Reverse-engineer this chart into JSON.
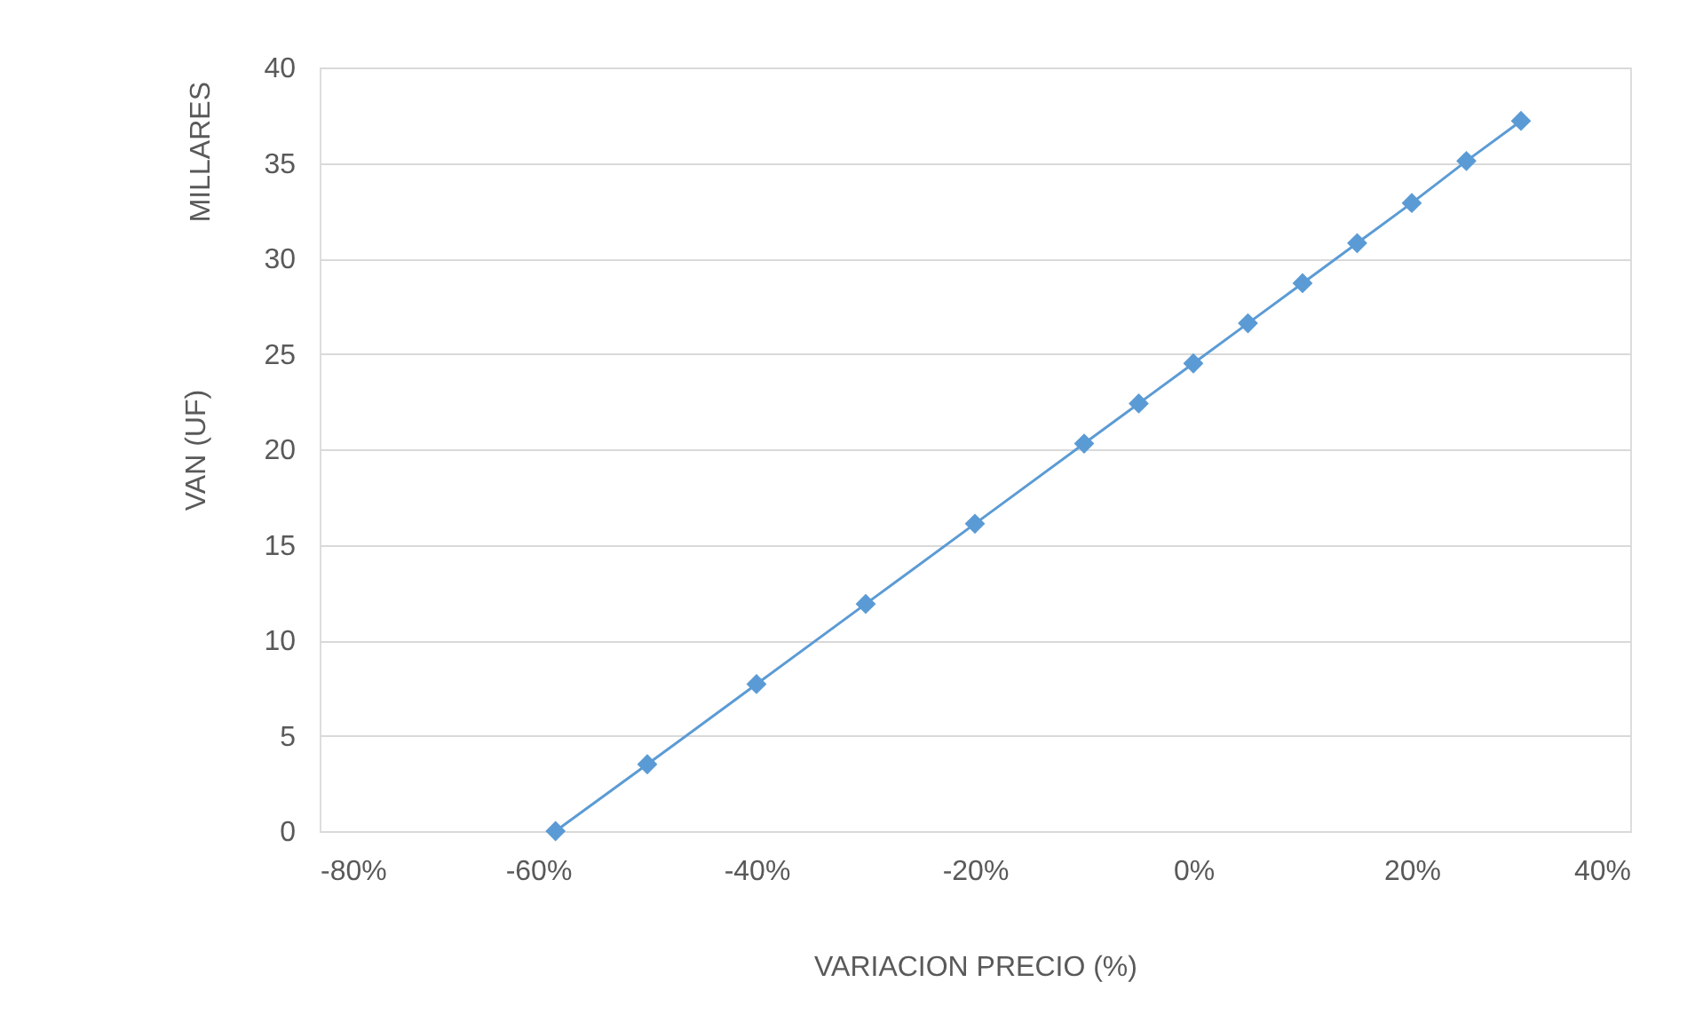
{
  "chart_data": {
    "type": "line",
    "xlabel": "VARIACION PRECIO (%)",
    "ylabel": "VAN (UF)",
    "annotations": [
      "MILLARES"
    ],
    "x": [
      -58.4,
      -50,
      -40,
      -30,
      -20,
      -10,
      -5,
      0,
      5,
      10,
      15,
      20,
      25,
      30
    ],
    "series": [
      {
        "color": "#5b9bd5",
        "values": [
          0,
          3.5,
          7.7,
          11.9,
          16.1,
          20.3,
          22.4,
          24.5,
          26.6,
          28.7,
          30.8,
          32.9,
          35.1,
          37.2
        ]
      }
    ],
    "xlim": [
      -80,
      40
    ],
    "xticks": [
      {
        "value": -80,
        "label": "-80%"
      },
      {
        "value": -60,
        "label": "-60%"
      },
      {
        "value": -40,
        "label": "-40%"
      },
      {
        "value": -20,
        "label": "-20%"
      },
      {
        "value": 0,
        "label": "0%"
      },
      {
        "value": 20,
        "label": "20%"
      },
      {
        "value": 40,
        "label": "40%"
      }
    ],
    "ylim": [
      0,
      40
    ],
    "yticks": [
      0,
      5,
      10,
      15,
      20,
      25,
      30,
      35,
      40
    ],
    "grid": "y",
    "marker": "diamond",
    "line_style": "solid"
  }
}
